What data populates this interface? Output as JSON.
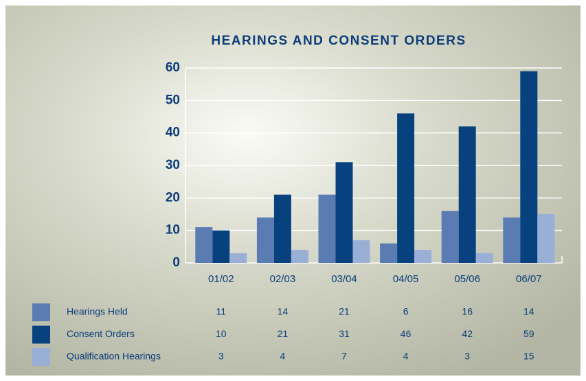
{
  "chart_data": {
    "type": "bar",
    "title": "HEARINGS AND CONSENT ORDERS",
    "categories": [
      "01/02",
      "02/03",
      "03/04",
      "04/05",
      "05/06",
      "06/07"
    ],
    "series": [
      {
        "name": "Hearings Held",
        "color": "#5a7cb3",
        "values": [
          11,
          14,
          21,
          6,
          16,
          14
        ]
      },
      {
        "name": "Consent Orders",
        "color": "#07427f",
        "values": [
          10,
          21,
          31,
          46,
          42,
          59
        ]
      },
      {
        "name": "Qualification Hearings",
        "color": "#9aafd6",
        "values": [
          3,
          4,
          7,
          4,
          3,
          15
        ]
      }
    ],
    "ylim": [
      0,
      60
    ],
    "yticks": [
      0,
      10,
      20,
      30,
      40,
      50,
      60
    ],
    "grid": true
  }
}
